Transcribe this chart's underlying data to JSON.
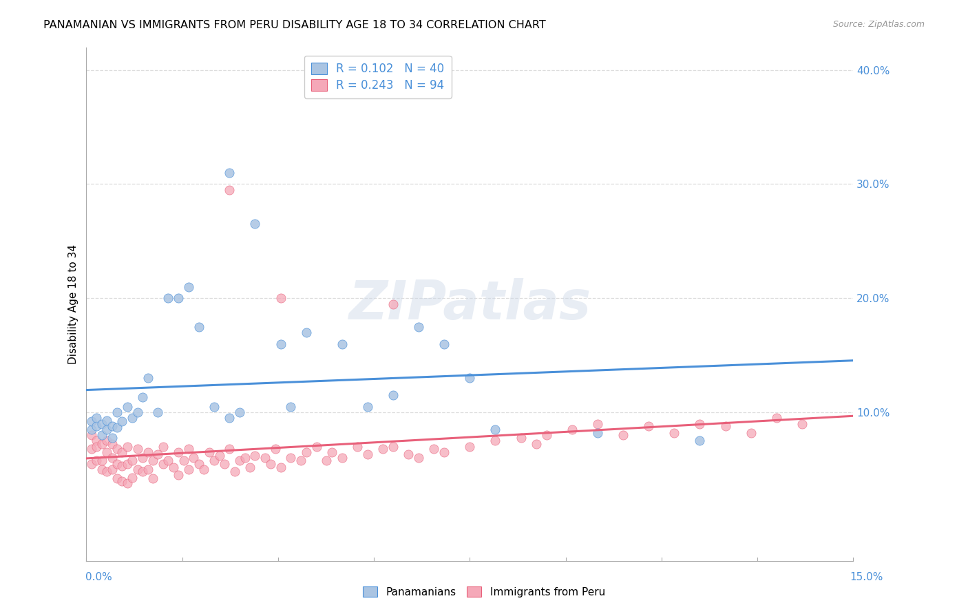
{
  "title": "PANAMANIAN VS IMMIGRANTS FROM PERU DISABILITY AGE 18 TO 34 CORRELATION CHART",
  "source": "Source: ZipAtlas.com",
  "ylabel": "Disability Age 18 to 34",
  "right_ytick_vals": [
    0.1,
    0.2,
    0.3,
    0.4
  ],
  "right_ytick_labels": [
    "10.0%",
    "20.0%",
    "30.0%",
    "40.0%"
  ],
  "xmin": 0.0,
  "xmax": 0.15,
  "ymin": -0.03,
  "ymax": 0.42,
  "watermark": "ZIPatlas",
  "legend_blue_label": "R = 0.102   N = 40",
  "legend_pink_label": "R = 0.243   N = 94",
  "legend_bottom_blue": "Panamanians",
  "legend_bottom_pink": "Immigrants from Peru",
  "blue_color": "#aac4e2",
  "pink_color": "#f5a8b8",
  "blue_line_color": "#4a90d9",
  "pink_line_color": "#e8607a",
  "grid_color": "#dddddd",
  "blue_points_x": [
    0.001,
    0.001,
    0.002,
    0.002,
    0.003,
    0.003,
    0.004,
    0.004,
    0.005,
    0.005,
    0.006,
    0.006,
    0.007,
    0.008,
    0.009,
    0.01,
    0.011,
    0.012,
    0.014,
    0.016,
    0.018,
    0.02,
    0.022,
    0.025,
    0.028,
    0.028,
    0.03,
    0.033,
    0.038,
    0.04,
    0.043,
    0.05,
    0.055,
    0.06,
    0.065,
    0.07,
    0.075,
    0.08,
    0.1,
    0.12
  ],
  "blue_points_y": [
    0.085,
    0.092,
    0.088,
    0.095,
    0.09,
    0.08,
    0.093,
    0.085,
    0.088,
    0.078,
    0.1,
    0.087,
    0.092,
    0.105,
    0.095,
    0.1,
    0.113,
    0.13,
    0.1,
    0.2,
    0.2,
    0.21,
    0.175,
    0.105,
    0.31,
    0.095,
    0.1,
    0.265,
    0.16,
    0.105,
    0.17,
    0.16,
    0.105,
    0.115,
    0.175,
    0.16,
    0.13,
    0.085,
    0.082,
    0.075
  ],
  "pink_points_x": [
    0.001,
    0.001,
    0.001,
    0.002,
    0.002,
    0.002,
    0.003,
    0.003,
    0.003,
    0.004,
    0.004,
    0.004,
    0.005,
    0.005,
    0.005,
    0.006,
    0.006,
    0.006,
    0.007,
    0.007,
    0.007,
    0.008,
    0.008,
    0.008,
    0.009,
    0.009,
    0.01,
    0.01,
    0.011,
    0.011,
    0.012,
    0.012,
    0.013,
    0.013,
    0.014,
    0.015,
    0.015,
    0.016,
    0.017,
    0.018,
    0.018,
    0.019,
    0.02,
    0.02,
    0.021,
    0.022,
    0.023,
    0.024,
    0.025,
    0.026,
    0.027,
    0.028,
    0.029,
    0.03,
    0.031,
    0.032,
    0.033,
    0.035,
    0.036,
    0.037,
    0.038,
    0.04,
    0.042,
    0.043,
    0.045,
    0.047,
    0.048,
    0.05,
    0.053,
    0.055,
    0.058,
    0.06,
    0.063,
    0.065,
    0.068,
    0.07,
    0.075,
    0.08,
    0.085,
    0.088,
    0.09,
    0.095,
    0.1,
    0.105,
    0.11,
    0.115,
    0.12,
    0.125,
    0.13,
    0.135,
    0.14,
    0.038,
    0.028,
    0.06
  ],
  "pink_points_y": [
    0.068,
    0.08,
    0.055,
    0.075,
    0.058,
    0.07,
    0.072,
    0.058,
    0.05,
    0.065,
    0.075,
    0.048,
    0.06,
    0.072,
    0.05,
    0.068,
    0.055,
    0.042,
    0.065,
    0.053,
    0.04,
    0.07,
    0.055,
    0.038,
    0.058,
    0.043,
    0.068,
    0.05,
    0.06,
    0.048,
    0.065,
    0.05,
    0.058,
    0.042,
    0.063,
    0.055,
    0.07,
    0.058,
    0.052,
    0.065,
    0.045,
    0.058,
    0.068,
    0.05,
    0.06,
    0.055,
    0.05,
    0.065,
    0.058,
    0.062,
    0.055,
    0.068,
    0.048,
    0.058,
    0.06,
    0.052,
    0.062,
    0.06,
    0.055,
    0.068,
    0.052,
    0.06,
    0.058,
    0.065,
    0.07,
    0.058,
    0.065,
    0.06,
    0.07,
    0.063,
    0.068,
    0.07,
    0.063,
    0.06,
    0.068,
    0.065,
    0.07,
    0.075,
    0.078,
    0.072,
    0.08,
    0.085,
    0.09,
    0.08,
    0.088,
    0.082,
    0.09,
    0.088,
    0.082,
    0.095,
    0.09,
    0.2,
    0.295,
    0.195
  ]
}
